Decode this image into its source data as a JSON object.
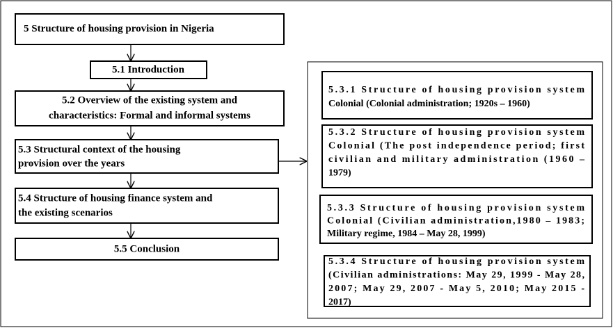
{
  "nodes": [
    {
      "lines": [
        "5  Structure of housing provision in Nigeria"
      ]
    },
    {
      "lines": [
        "5.1 Introduction"
      ]
    },
    {
      "lines": [
        "5.2 Overview of the existing system and",
        "characteristics: Formal and informal systems"
      ]
    },
    {
      "lines": [
        "5.3 Structural context of  the housing",
        "provision over the years"
      ]
    },
    {
      "lines": [
        "5.4 Structure of housing finance system and",
        "the existing scenarios"
      ]
    },
    {
      "lines": [
        "5.5 Conclusion"
      ]
    }
  ],
  "details": [
    {
      "lines": [
        "5.3.1  Structure  of  housing  provision  system",
        "Colonial (Colonial administration; 1920s – 1960)"
      ]
    },
    {
      "lines": [
        "5.3.2  Structure  of  housing  provision  system",
        "Colonial  (The  post  independence  period;  first",
        "civilian  and  military  administration  (1960  –",
        "1979)"
      ]
    },
    {
      "lines": [
        "5.3.3  Structure  of  housing  provision  system",
        "Colonial  (Civilian  administration,1980  –  1983;",
        "Military regime, 1984 – May 28, 1999)"
      ]
    },
    {
      "lines": [
        "5.3.4  Structure  of  housing  provision  system",
        "(Civilian  administrations:  May  29,  1999  -  May  28,",
        "2007;  May  29,  2007  -  May  5,  2010;  May  2015  -",
        "2017)"
      ]
    }
  ]
}
